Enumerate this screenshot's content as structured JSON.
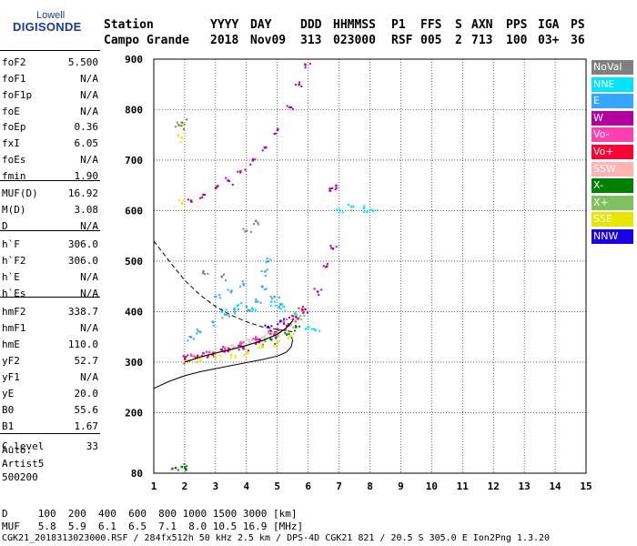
{
  "logo": {
    "line1": "Lowell",
    "line2": "DIGISONDE"
  },
  "header": {
    "labels": [
      {
        "text": "Station",
        "x": 114
      },
      {
        "text": "YYYY",
        "x": 231
      },
      {
        "text": "DAY",
        "x": 275
      },
      {
        "text": "DDD",
        "x": 330
      },
      {
        "text": "HHMMSS",
        "x": 366
      },
      {
        "text": "P1",
        "x": 430
      },
      {
        "text": "FFS",
        "x": 462
      },
      {
        "text": "S",
        "x": 500
      },
      {
        "text": "AXN",
        "x": 518
      },
      {
        "text": "PPS",
        "x": 556
      },
      {
        "text": "IGA",
        "x": 591
      },
      {
        "text": "PS",
        "x": 627
      }
    ],
    "values": [
      {
        "text": "Campo Grande",
        "x": 114
      },
      {
        "text": "2018",
        "x": 231
      },
      {
        "text": "Nov09",
        "x": 275
      },
      {
        "text": "313",
        "x": 330
      },
      {
        "text": "023000",
        "x": 366
      },
      {
        "text": "RSF",
        "x": 430
      },
      {
        "text": "005",
        "x": 462
      },
      {
        "text": "2",
        "x": 500
      },
      {
        "text": "713",
        "x": 518
      },
      {
        "text": "100",
        "x": 556
      },
      {
        "text": "03+",
        "x": 591
      },
      {
        "text": "36",
        "x": 627
      }
    ]
  },
  "params": [
    {
      "label": "foF2",
      "value": "5.500"
    },
    {
      "label": "foF1",
      "value": "N/A"
    },
    {
      "label": "foF1p",
      "value": "N/A"
    },
    {
      "label": "foE",
      "value": "N/A"
    },
    {
      "label": "foEp",
      "value": "0.36"
    },
    {
      "label": "fxI",
      "value": "6.05"
    },
    {
      "label": "foEs",
      "value": "N/A"
    },
    {
      "label": "fmin",
      "value": "1.90"
    },
    {
      "label": "MUF(D)",
      "value": "16.92"
    },
    {
      "label": "M(D)",
      "value": "3.08"
    },
    {
      "label": "D",
      "value": "N/A"
    },
    {
      "label": "h`F",
      "value": "306.0"
    },
    {
      "label": "h`F2",
      "value": "306.0"
    },
    {
      "label": "h`E",
      "value": "N/A"
    },
    {
      "label": "h`Es",
      "value": "N/A"
    },
    {
      "label": "hmF2",
      "value": "338.7"
    },
    {
      "label": "hmF1",
      "value": "N/A"
    },
    {
      "label": "hmE",
      "value": "110.0"
    },
    {
      "label": "yF2",
      "value": "52.7"
    },
    {
      "label": "yF1",
      "value": "N/A"
    },
    {
      "label": "yE",
      "value": "20.0"
    },
    {
      "label": "B0",
      "value": "55.6"
    },
    {
      "label": "B1",
      "value": "1.67"
    },
    {
      "label": "C-level",
      "value": "33"
    }
  ],
  "auto": [
    "Auto:",
    "Artist5",
    "500200"
  ],
  "legend": [
    {
      "label": "NoVal",
      "bg": "#808080",
      "fg": "#ffffff"
    },
    {
      "label": "NNE",
      "bg": "#00e5ff",
      "fg": "#ffffff"
    },
    {
      "label": "E",
      "bg": "#33a6ff",
      "fg": "#ffffff"
    },
    {
      "label": "W",
      "bg": "#b3009e",
      "fg": "#ffffff"
    },
    {
      "label": "Vo-",
      "bg": "#ff40b0",
      "fg": "#ffffff"
    },
    {
      "label": "Vo+",
      "bg": "#ff0033",
      "fg": "#ffffff"
    },
    {
      "label": "SSW",
      "bg": "#ffb3b3",
      "fg": "#ffffff"
    },
    {
      "label": "X-",
      "bg": "#008000",
      "fg": "#ffffff"
    },
    {
      "label": "X+",
      "bg": "#80c060",
      "fg": "#ffffff"
    },
    {
      "label": "SSE",
      "bg": "#e6e600",
      "fg": "#ffffff"
    },
    {
      "label": "NNW",
      "bg": "#1a00e6",
      "fg": "#ffffff"
    }
  ],
  "footer": {
    "d_row": "D     100  200  400  600  800 1000 1500 3000 [km]",
    "muf_row": "MUF   5.8  5.9  6.1  6.5  7.1  8.0 10.5 16.9 [MHz]",
    "file_row": "CGK21_2018313023000.RSF / 284fx512h 50 kHz 2.5 km / DPS-4D CGK21 821 / 20.5 S 305.0 E Ion2Png 1.3.20"
  },
  "chart_data": {
    "type": "scatter",
    "xlim": [
      1,
      15
    ],
    "ylim": [
      80,
      900
    ],
    "x_ticks": [
      1,
      2,
      3,
      4,
      5,
      6,
      7,
      8,
      9,
      10,
      11,
      12,
      13,
      14,
      15
    ],
    "y_ticks": [
      80,
      200,
      300,
      400,
      500,
      600,
      700,
      800,
      900
    ],
    "grid": true,
    "series": [
      {
        "name": "W",
        "color": "#b3009e",
        "points": [
          [
            2.2,
            620
          ],
          [
            2.6,
            632
          ],
          [
            3.0,
            645
          ],
          [
            3.4,
            660
          ],
          [
            3.8,
            678
          ],
          [
            4.2,
            700
          ],
          [
            4.6,
            725
          ],
          [
            5.0,
            760
          ],
          [
            5.4,
            805
          ],
          [
            5.7,
            850
          ],
          [
            5.9,
            890
          ],
          [
            2.0,
            310
          ],
          [
            2.6,
            318
          ],
          [
            3.2,
            325
          ],
          [
            3.8,
            333
          ],
          [
            4.4,
            345
          ],
          [
            5.0,
            365
          ],
          [
            5.5,
            385
          ],
          [
            5.9,
            405
          ],
          [
            6.3,
            440
          ],
          [
            6.6,
            490
          ],
          [
            6.8,
            525
          ],
          [
            6.7,
            640
          ],
          [
            6.9,
            650
          ]
        ]
      },
      {
        "name": "E",
        "color": "#33a6ff",
        "points": [
          [
            2.2,
            350
          ],
          [
            2.5,
            360
          ],
          [
            2.9,
            380
          ],
          [
            3.3,
            395
          ],
          [
            3.6,
            405
          ],
          [
            4.0,
            410
          ],
          [
            4.3,
            420
          ],
          [
            4.5,
            450
          ],
          [
            4.6,
            480
          ],
          [
            4.7,
            500
          ],
          [
            4.9,
            430
          ],
          [
            5.1,
            415
          ],
          [
            3.0,
            430
          ],
          [
            3.5,
            440
          ],
          [
            3.9,
            455
          ]
        ]
      },
      {
        "name": "NNE",
        "color": "#00e5ff",
        "points": [
          [
            3.2,
            400
          ],
          [
            3.7,
            412
          ],
          [
            4.2,
            405
          ],
          [
            4.8,
            420
          ],
          [
            5.2,
            410
          ],
          [
            5.6,
            395
          ],
          [
            6.0,
            370
          ],
          [
            6.2,
            365
          ],
          [
            7.0,
            602
          ],
          [
            7.4,
            608
          ],
          [
            7.8,
            605
          ],
          [
            8.1,
            600
          ]
        ]
      },
      {
        "name": "Vo+",
        "color": "#ff0033",
        "points": [
          [
            2.0,
            306
          ],
          [
            2.4,
            310
          ],
          [
            2.9,
            315
          ],
          [
            3.4,
            322
          ],
          [
            3.9,
            330
          ],
          [
            4.4,
            340
          ],
          [
            4.9,
            355
          ],
          [
            5.3,
            372
          ],
          [
            5.6,
            390
          ],
          [
            5.8,
            405
          ]
        ]
      },
      {
        "name": "Vo-",
        "color": "#ff40b0",
        "points": [
          [
            2.3,
            312
          ],
          [
            2.8,
            320
          ],
          [
            3.3,
            328
          ],
          [
            3.8,
            338
          ],
          [
            4.3,
            348
          ],
          [
            4.8,
            362
          ],
          [
            5.2,
            380
          ]
        ]
      },
      {
        "name": "SSE",
        "color": "#e6e600",
        "points": [
          [
            2.1,
            302
          ],
          [
            2.5,
            306
          ],
          [
            3.0,
            310
          ],
          [
            3.5,
            314
          ],
          [
            4.0,
            320
          ],
          [
            4.5,
            330
          ],
          [
            5.0,
            340
          ],
          [
            5.4,
            352
          ],
          [
            1.9,
            615
          ],
          [
            1.9,
            745
          ],
          [
            1.9,
            770
          ]
        ]
      },
      {
        "name": "X-",
        "color": "#008000",
        "points": [
          [
            1.7,
            91
          ],
          [
            1.9,
            93
          ],
          [
            2.0,
            92
          ],
          [
            5.3,
            355
          ],
          [
            5.6,
            370
          ],
          [
            4.8,
            345
          ]
        ]
      },
      {
        "name": "X+",
        "color": "#80c060",
        "points": [
          [
            5.0,
            358
          ],
          [
            5.4,
            374
          ],
          [
            5.7,
            388
          ],
          [
            4.6,
            342
          ]
        ]
      },
      {
        "name": "SSW",
        "color": "#ffb3b3",
        "points": [
          [
            3.6,
            330
          ],
          [
            4.1,
            340
          ],
          [
            4.6,
            352
          ]
        ]
      },
      {
        "name": "NoVal",
        "color": "#808080",
        "points": [
          [
            3.2,
            470
          ],
          [
            4.0,
            560
          ],
          [
            4.3,
            580
          ],
          [
            2.6,
            480
          ],
          [
            1.9,
            775
          ],
          [
            1.8,
            770
          ]
        ]
      },
      {
        "name": "NNW",
        "color": "#1a00e6",
        "points": [
          [
            4.7,
            370
          ],
          [
            5.1,
            382
          ]
        ]
      }
    ],
    "dashed_curve": [
      [
        1,
        540
      ],
      [
        1.5,
        500
      ],
      [
        2,
        462
      ],
      [
        2.5,
        433
      ],
      [
        3,
        410
      ],
      [
        3.5,
        393
      ],
      [
        4,
        380
      ],
      [
        4.5,
        370
      ],
      [
        5,
        365
      ],
      [
        5.3,
        362
      ],
      [
        5.5,
        360
      ]
    ],
    "solid_curve": [
      [
        1,
        248
      ],
      [
        1.5,
        262
      ],
      [
        2,
        273
      ],
      [
        2.5,
        281
      ],
      [
        3,
        287
      ],
      [
        3.5,
        293
      ],
      [
        4,
        299
      ],
      [
        4.5,
        305
      ],
      [
        5,
        312
      ],
      [
        5.3,
        320
      ],
      [
        5.45,
        330
      ],
      [
        5.5,
        345
      ]
    ],
    "profile_curve": [
      [
        2.0,
        300
      ],
      [
        2.5,
        310
      ],
      [
        3.0,
        318
      ],
      [
        3.5,
        325
      ],
      [
        4.0,
        333
      ],
      [
        4.5,
        342
      ],
      [
        5.0,
        355
      ],
      [
        5.3,
        368
      ],
      [
        5.5,
        382
      ]
    ]
  }
}
